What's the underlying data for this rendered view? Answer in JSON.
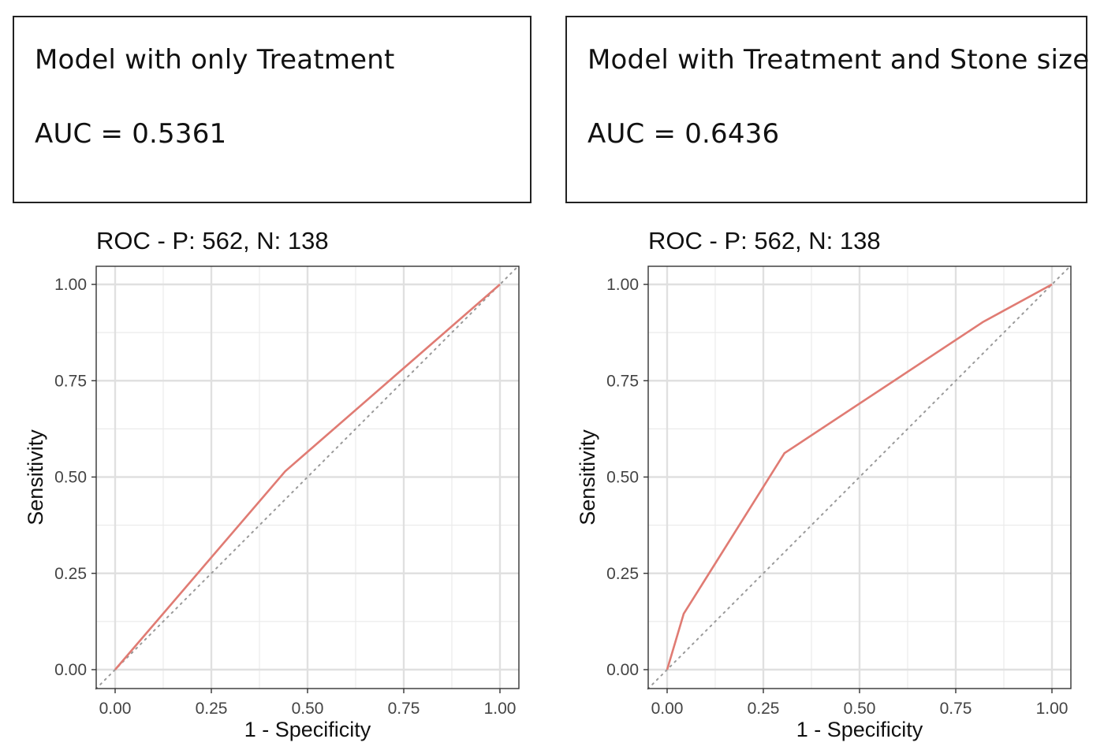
{
  "panels": [
    {
      "model_label": "Model with only Treatment",
      "auc_label": "AUC = 0.5361"
    },
    {
      "model_label": "Model with Treatment and Stone size",
      "auc_label": "AUC = 0.6436"
    }
  ],
  "chart_data": [
    {
      "type": "line",
      "title": "ROC - P: 562, N: 138",
      "xlabel": "1 - Specificity",
      "ylabel": "Sensitivity",
      "xlim": [
        0,
        1
      ],
      "ylim": [
        0,
        1
      ],
      "xticks": [
        "0.00",
        "0.25",
        "0.50",
        "0.75",
        "1.00"
      ],
      "yticks": [
        "0.00",
        "0.25",
        "0.50",
        "0.75",
        "1.00"
      ],
      "grid": true,
      "roc_curve": {
        "color": "#E07B73",
        "points": [
          [
            0,
            0
          ],
          [
            0.442,
            0.515
          ],
          [
            1,
            1
          ]
        ]
      },
      "reference_line": {
        "style": "dotted",
        "color": "#9a9a9a",
        "points": [
          [
            -0.05,
            -0.05
          ],
          [
            1.05,
            1.05
          ]
        ]
      }
    },
    {
      "type": "line",
      "title": "ROC - P: 562, N: 138",
      "xlabel": "1 - Specificity",
      "ylabel": "Sensitivity",
      "xlim": [
        0,
        1
      ],
      "ylim": [
        0,
        1
      ],
      "xticks": [
        "0.00",
        "0.25",
        "0.50",
        "0.75",
        "1.00"
      ],
      "yticks": [
        "0.00",
        "0.25",
        "0.50",
        "0.75",
        "1.00"
      ],
      "grid": true,
      "roc_curve": {
        "color": "#E07B73",
        "points": [
          [
            0,
            0
          ],
          [
            0.043,
            0.145
          ],
          [
            0.305,
            0.562
          ],
          [
            0.82,
            0.902
          ],
          [
            1,
            1
          ]
        ]
      },
      "reference_line": {
        "style": "dotted",
        "color": "#9a9a9a",
        "points": [
          [
            -0.05,
            -0.05
          ],
          [
            1.05,
            1.05
          ]
        ]
      }
    }
  ]
}
